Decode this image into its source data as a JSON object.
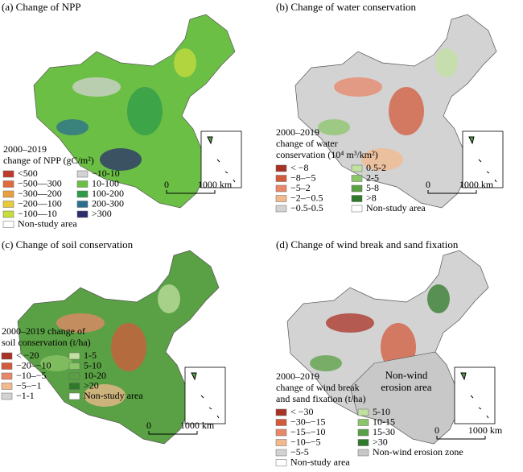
{
  "panels": [
    {
      "title": "(a) Change of NPP",
      "legend_title": [
        "2000–2019",
        "change of NPP (gC/m²)"
      ],
      "legend": [
        {
          "label": "<500",
          "color": "#c0392b"
        },
        {
          "label": "−500—300",
          "color": "#e06a3a"
        },
        {
          "label": "−300—200",
          "color": "#e8a03c"
        },
        {
          "label": "−200—100",
          "color": "#e8c93a"
        },
        {
          "label": "−100—10",
          "color": "#c8dc3c"
        },
        {
          "label": "−10-10",
          "color": "#d3d3d3"
        },
        {
          "label": "10-100",
          "color": "#6cbf45"
        },
        {
          "label": "100-200",
          "color": "#2e9b4a"
        },
        {
          "label": "200-300",
          "color": "#2a6f8f"
        },
        {
          "label": ">300",
          "color": "#2b2d6e"
        },
        {
          "label": "Non-study area",
          "color": "#ffffff"
        }
      ],
      "scale": [
        "0",
        "1000 km"
      ]
    },
    {
      "title": "(b) Change of water conservation",
      "legend_title": [
        "2000–2019",
        "change of water",
        "conservation (10⁴ m³/km²)"
      ],
      "legend": [
        {
          "label": "< −8",
          "color": "#a93226"
        },
        {
          "label": "−8–−5",
          "color": "#d35b3c"
        },
        {
          "label": "−5–2",
          "color": "#e8876a"
        },
        {
          "label": "−2–−0.5",
          "color": "#f3b98e"
        },
        {
          "label": "−0.5-0.5",
          "color": "#d3d3d3"
        },
        {
          "label": "0.5-2",
          "color": "#c2e0a0"
        },
        {
          "label": "2-5",
          "color": "#8cc66a"
        },
        {
          "label": "5-8",
          "color": "#5aa044"
        },
        {
          "label": ">8",
          "color": "#2f7a2a"
        },
        {
          "label": "Non-study area",
          "color": "#ffffff"
        }
      ],
      "scale": [
        "0",
        "1000 km"
      ]
    },
    {
      "title": "(c) Change of soil conservation",
      "legend_title": [
        "2000–2019 change of",
        "soil conservation (t/ha)"
      ],
      "legend": [
        {
          "label": "< −20",
          "color": "#a93226"
        },
        {
          "label": "−20–−10",
          "color": "#d35b3c"
        },
        {
          "label": "−10–−5",
          "color": "#e8876a"
        },
        {
          "label": "−5–−1",
          "color": "#f3b98e"
        },
        {
          "label": "−1-1",
          "color": "#d3d3d3"
        },
        {
          "label": "1-5",
          "color": "#c2e0a0"
        },
        {
          "label": "5-10",
          "color": "#8cc66a"
        },
        {
          "label": "10-20",
          "color": "#5aa044"
        },
        {
          "label": ">20",
          "color": "#2f7a2a"
        },
        {
          "label": "Non-study area",
          "color": "#ffffff"
        }
      ],
      "scale": [
        "0",
        "1000 km"
      ]
    },
    {
      "title": "(d) Change of wind break and sand fixation",
      "legend_title": [
        "2000–2019",
        "change of wind break",
        "and sand fixation (t/ha)"
      ],
      "legend": [
        {
          "label": "< −30",
          "color": "#a93226"
        },
        {
          "label": "−30–−15",
          "color": "#d35b3c"
        },
        {
          "label": "−15–−10",
          "color": "#e8876a"
        },
        {
          "label": "−10–−5",
          "color": "#f3b98e"
        },
        {
          "label": "−5-5",
          "color": "#d3d3d3"
        },
        {
          "label": "5-10",
          "color": "#c2e0a0"
        },
        {
          "label": "10-15",
          "color": "#8cc66a"
        },
        {
          "label": "15-30",
          "color": "#5aa044"
        },
        {
          "label": ">30",
          "color": "#2f7a2a"
        },
        {
          "label": "Non-wind erosion zone",
          "color": "#c8c8c8"
        },
        {
          "label": "Non-study area",
          "color": "#ffffff"
        }
      ],
      "scale": [
        "0",
        "1000 km"
      ],
      "map_label": [
        "Non-wind",
        "erosion area"
      ]
    }
  ]
}
